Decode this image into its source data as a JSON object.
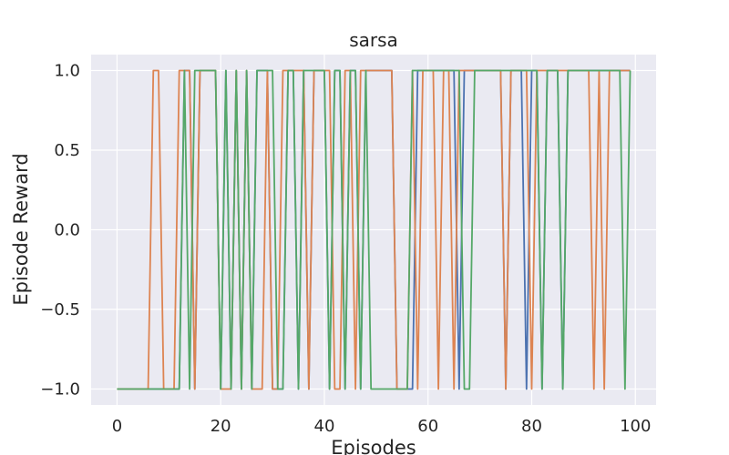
{
  "chart_data": {
    "type": "line",
    "title": "sarsa",
    "xlabel": "Episodes",
    "ylabel": "Episode Reward",
    "xlim": [
      -5,
      104
    ],
    "ylim": [
      -1.1,
      1.1
    ],
    "x_ticks": [
      0,
      20,
      40,
      60,
      80,
      100
    ],
    "x_tick_labels": [
      "0",
      "20",
      "40",
      "60",
      "80",
      "100"
    ],
    "y_ticks": [
      1.0,
      0.5,
      0.0,
      -0.5,
      -1.0
    ],
    "y_tick_labels": [
      "1.0",
      "0.5",
      "0.0",
      "−0.5",
      "−1.0"
    ],
    "grid": true,
    "legend": "none",
    "x": [
      0,
      1,
      2,
      3,
      4,
      5,
      6,
      7,
      8,
      9,
      10,
      11,
      12,
      13,
      14,
      15,
      16,
      17,
      18,
      19,
      20,
      21,
      22,
      23,
      24,
      25,
      26,
      27,
      28,
      29,
      30,
      31,
      32,
      33,
      34,
      35,
      36,
      37,
      38,
      39,
      40,
      41,
      42,
      43,
      44,
      45,
      46,
      47,
      48,
      49,
      50,
      51,
      52,
      53,
      54,
      55,
      56,
      57,
      58,
      59,
      60,
      61,
      62,
      63,
      64,
      65,
      66,
      67,
      68,
      69,
      70,
      71,
      72,
      73,
      74,
      75,
      76,
      77,
      78,
      79,
      80,
      81,
      82,
      83,
      84,
      85,
      86,
      87,
      88,
      89,
      90,
      91,
      92,
      93,
      94,
      95,
      96,
      97,
      98,
      99
    ],
    "series": [
      {
        "color": "#4c72b0",
        "values": [
          -1,
          -1,
          -1,
          -1,
          -1,
          -1,
          -1,
          -1,
          -1,
          -1,
          -1,
          -1,
          -1,
          1,
          1,
          -1,
          1,
          1,
          1,
          1,
          -1,
          1,
          -1,
          1,
          -1,
          1,
          -1,
          1,
          1,
          1,
          -1,
          -1,
          -1,
          1,
          1,
          -1,
          1,
          -1,
          1,
          1,
          1,
          -1,
          1,
          1,
          -1,
          1,
          1,
          -1,
          1,
          1,
          1,
          1,
          1,
          1,
          -1,
          -1,
          -1,
          -1,
          1,
          1,
          1,
          1,
          1,
          1,
          1,
          1,
          -1,
          1,
          1,
          1,
          1,
          1,
          1,
          1,
          1,
          -1,
          1,
          1,
          1,
          -1,
          1,
          1,
          -1,
          1,
          1,
          1,
          -1,
          1,
          1,
          1,
          1,
          1,
          1,
          1,
          1,
          1,
          1,
          1,
          1,
          1
        ]
      },
      {
        "color": "#dd8452",
        "values": [
          -1,
          -1,
          -1,
          -1,
          -1,
          -1,
          -1,
          1,
          1,
          -1,
          -1,
          -1,
          1,
          1,
          1,
          -1,
          1,
          1,
          1,
          1,
          -1,
          -1,
          -1,
          1,
          -1,
          1,
          -1,
          -1,
          -1,
          1,
          -1,
          -1,
          1,
          1,
          1,
          1,
          1,
          -1,
          1,
          1,
          1,
          1,
          -1,
          -1,
          1,
          1,
          -1,
          1,
          1,
          1,
          1,
          1,
          1,
          1,
          -1,
          -1,
          -1,
          1,
          -1,
          1,
          1,
          1,
          -1,
          1,
          1,
          -1,
          1,
          1,
          1,
          1,
          1,
          1,
          1,
          1,
          1,
          -1,
          1,
          1,
          1,
          1,
          -1,
          1,
          1,
          1,
          1,
          1,
          1,
          1,
          1,
          1,
          1,
          1,
          -1,
          1,
          -1,
          1,
          1,
          1,
          1,
          1
        ]
      },
      {
        "color": "#55a868",
        "values": [
          -1,
          -1,
          -1,
          -1,
          -1,
          -1,
          -1,
          -1,
          -1,
          -1,
          -1,
          -1,
          -1,
          1,
          -1,
          1,
          1,
          1,
          1,
          1,
          -1,
          1,
          -1,
          1,
          -1,
          1,
          -1,
          1,
          1,
          1,
          1,
          -1,
          -1,
          1,
          1,
          -1,
          1,
          1,
          1,
          1,
          1,
          -1,
          1,
          1,
          -1,
          1,
          1,
          -1,
          1,
          -1,
          -1,
          -1,
          -1,
          -1,
          -1,
          -1,
          -1,
          1,
          1,
          1,
          1,
          1,
          1,
          1,
          1,
          1,
          1,
          -1,
          -1,
          1,
          1,
          1,
          1,
          1,
          1,
          1,
          1,
          1,
          1,
          1,
          1,
          1,
          -1,
          1,
          1,
          1,
          -1,
          1,
          1,
          1,
          1,
          1,
          1,
          1,
          1,
          1,
          1,
          1,
          -1,
          1
        ]
      }
    ]
  }
}
